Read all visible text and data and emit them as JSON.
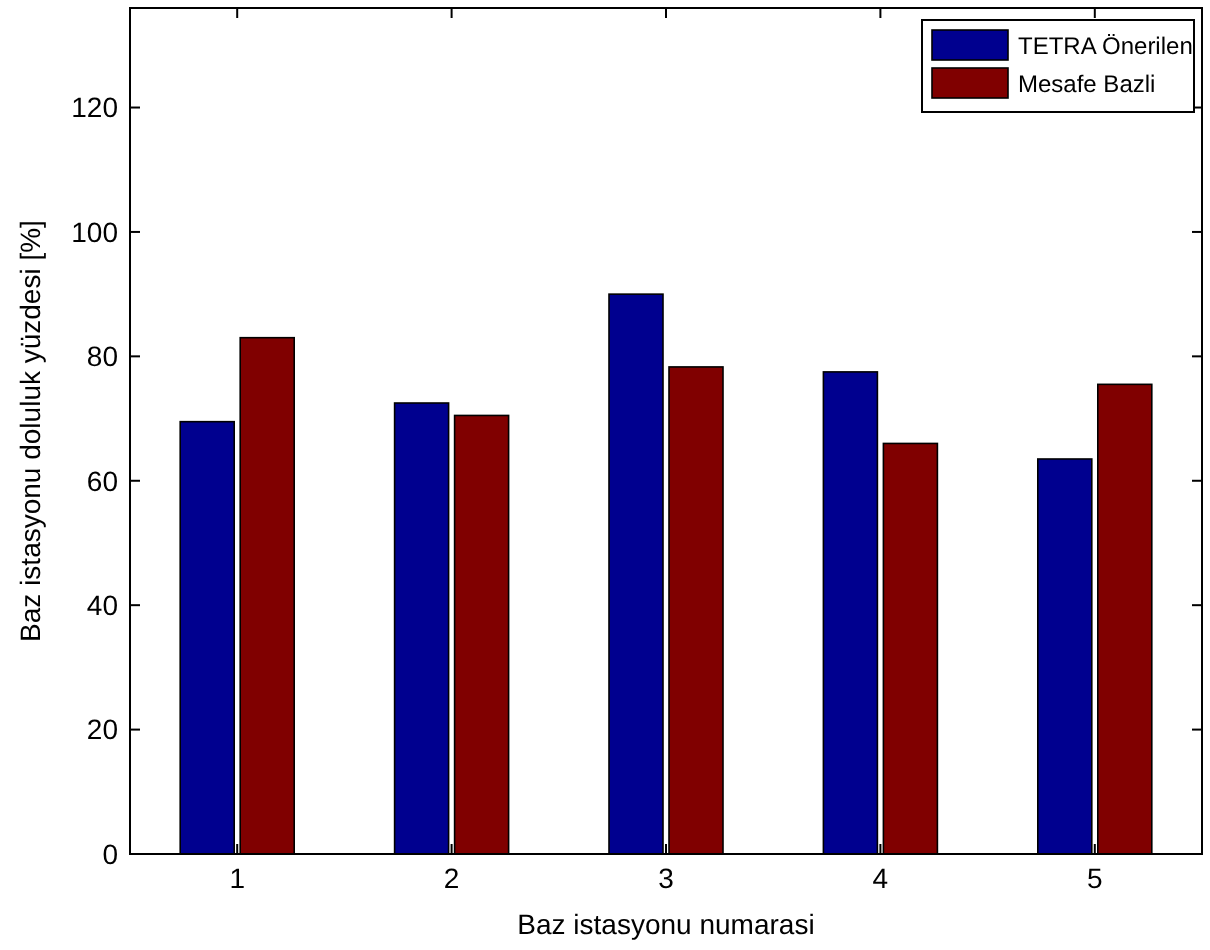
{
  "chart_data": {
    "type": "bar",
    "xlabel": "Baz istasyonu numarasi",
    "ylabel": "Baz istasyonu doluluk yüzdesi [%]",
    "categories": [
      "1",
      "2",
      "3",
      "4",
      "5"
    ],
    "series": [
      {
        "name": "TETRA Önerilen",
        "color": "#00008f",
        "values": [
          69.5,
          72.5,
          90,
          77.5,
          63.5
        ]
      },
      {
        "name": "Mesafe Bazli",
        "color": "#800000",
        "values": [
          83,
          70.5,
          78.3,
          66,
          75.5
        ]
      }
    ],
    "ylim": [
      0,
      136
    ],
    "yticks": [
      0,
      20,
      40,
      60,
      80,
      100,
      120
    ],
    "grid": false,
    "legend": "top right"
  }
}
